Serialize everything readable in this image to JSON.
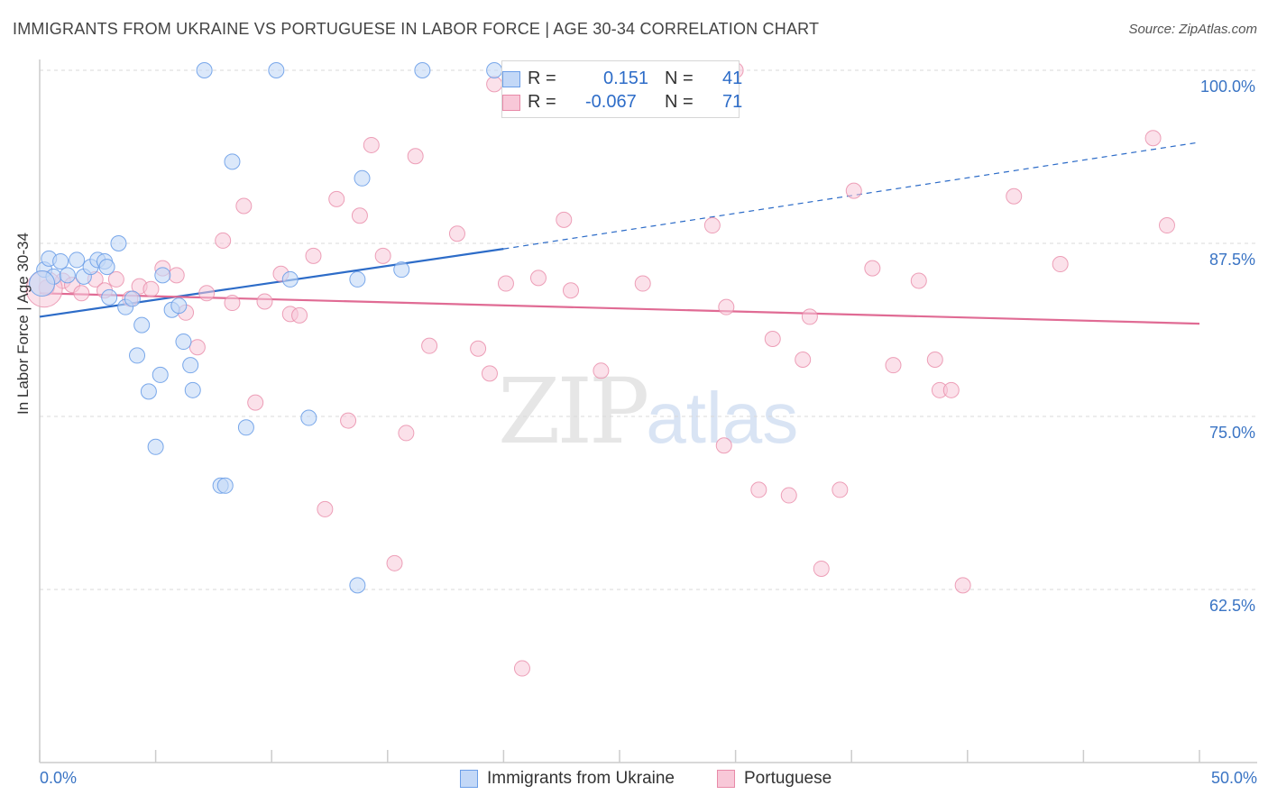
{
  "title": "IMMIGRANTS FROM UKRAINE VS PORTUGUESE IN LABOR FORCE | AGE 30-34 CORRELATION CHART",
  "source": "Source: ZipAtlas.com",
  "watermark": {
    "zip": "ZIP",
    "atlas": "atlas"
  },
  "colors": {
    "ukraine": "#6b9ee8",
    "ukraine_fill": "#c3d8f7",
    "portuguese": "#e88aa8",
    "portuguese_fill": "#f8c8d8",
    "ukraine_line": "#2d6cc8",
    "portuguese_line": "#e06b94",
    "axis_text": "#3a74c4"
  },
  "legend_top": {
    "ukraine": {
      "r_label": "R =",
      "r_value": "0.151",
      "n_label": "N =",
      "n_value": "41"
    },
    "portuguese": {
      "r_label": "R =",
      "r_value": "-0.067",
      "n_label": "N =",
      "n_value": "71"
    }
  },
  "chart_data": {
    "type": "scatter",
    "title": "IMMIGRANTS FROM UKRAINE VS PORTUGUESE IN LABOR FORCE | AGE 30-34 CORRELATION CHART",
    "xlabel": "",
    "ylabel": "In Labor Force | Age 30-34",
    "xlim": [
      0,
      50
    ],
    "ylim": [
      52,
      101
    ],
    "x_tick_labels": [
      "0.0%",
      "50.0%"
    ],
    "y_ticks": [
      62.5,
      75.0,
      87.5,
      100.0
    ],
    "y_tick_labels": [
      "62.5%",
      "75.0%",
      "87.5%",
      "100.0%"
    ],
    "grid": "horizontal dashed",
    "legend_position": "bottom-center",
    "series": [
      {
        "name": "Immigrants from Ukraine",
        "r": 0.151,
        "n": 41,
        "trend": {
          "x": [
            0,
            20
          ],
          "y": [
            82.2,
            87.1
          ],
          "extended_to": [
            50,
            94.8
          ]
        },
        "points": [
          [
            0.2,
            85.6
          ],
          [
            0.4,
            86.4
          ],
          [
            0.6,
            85.1
          ],
          [
            0.9,
            86.2
          ],
          [
            1.2,
            85.2
          ],
          [
            1.6,
            86.3
          ],
          [
            1.9,
            85.1
          ],
          [
            2.2,
            85.8
          ],
          [
            2.5,
            86.3
          ],
          [
            2.8,
            86.2
          ],
          [
            2.9,
            85.8
          ],
          [
            3.0,
            83.6
          ],
          [
            3.4,
            87.5
          ],
          [
            3.7,
            82.9
          ],
          [
            4.0,
            83.5
          ],
          [
            4.2,
            79.4
          ],
          [
            4.4,
            81.6
          ],
          [
            4.7,
            76.8
          ],
          [
            5.0,
            72.8
          ],
          [
            5.2,
            78.0
          ],
          [
            5.3,
            85.2
          ],
          [
            5.7,
            82.7
          ],
          [
            6.0,
            83.0
          ],
          [
            6.2,
            80.4
          ],
          [
            6.5,
            78.7
          ],
          [
            6.6,
            76.9
          ],
          [
            7.1,
            100.0
          ],
          [
            7.8,
            70.0
          ],
          [
            8.0,
            70.0
          ],
          [
            8.3,
            93.4
          ],
          [
            8.9,
            74.2
          ],
          [
            10.2,
            100.0
          ],
          [
            10.8,
            84.9
          ],
          [
            11.6,
            74.9
          ],
          [
            13.7,
            84.9
          ],
          [
            13.9,
            92.2
          ],
          [
            13.7,
            62.8
          ],
          [
            15.6,
            85.6
          ],
          [
            16.5,
            100.0
          ],
          [
            19.6,
            100.0
          ],
          [
            0.1,
            84.6
          ]
        ]
      },
      {
        "name": "Portuguese",
        "r": -0.067,
        "n": 71,
        "trend": {
          "x": [
            0,
            50
          ],
          "y": [
            83.9,
            81.7
          ]
        },
        "points": [
          [
            0.3,
            84.3
          ],
          [
            1.0,
            84.8
          ],
          [
            1.4,
            84.5
          ],
          [
            1.8,
            83.9
          ],
          [
            2.4,
            84.9
          ],
          [
            2.8,
            84.1
          ],
          [
            3.3,
            84.9
          ],
          [
            3.9,
            83.5
          ],
          [
            4.3,
            84.4
          ],
          [
            4.8,
            84.2
          ],
          [
            5.3,
            85.7
          ],
          [
            5.9,
            85.2
          ],
          [
            6.3,
            82.5
          ],
          [
            6.8,
            80.0
          ],
          [
            7.2,
            83.9
          ],
          [
            7.9,
            87.7
          ],
          [
            8.3,
            83.2
          ],
          [
            8.8,
            90.2
          ],
          [
            9.3,
            76.0
          ],
          [
            9.7,
            83.3
          ],
          [
            10.4,
            85.3
          ],
          [
            10.8,
            82.4
          ],
          [
            11.2,
            82.3
          ],
          [
            11.8,
            86.6
          ],
          [
            12.3,
            68.3
          ],
          [
            12.8,
            90.7
          ],
          [
            13.3,
            74.7
          ],
          [
            13.8,
            89.5
          ],
          [
            14.3,
            94.6
          ],
          [
            14.8,
            86.6
          ],
          [
            15.3,
            64.4
          ],
          [
            15.8,
            73.8
          ],
          [
            16.2,
            93.8
          ],
          [
            16.8,
            80.1
          ],
          [
            18.0,
            88.2
          ],
          [
            18.9,
            79.9
          ],
          [
            19.4,
            78.1
          ],
          [
            19.6,
            99.0
          ],
          [
            20.1,
            84.6
          ],
          [
            20.8,
            56.8
          ],
          [
            21.5,
            85.0
          ],
          [
            22.6,
            89.2
          ],
          [
            22.9,
            84.1
          ],
          [
            24.2,
            78.3
          ],
          [
            24.6,
            100.0
          ],
          [
            26.0,
            84.6
          ],
          [
            27.0,
            100.0
          ],
          [
            29.0,
            88.8
          ],
          [
            29.6,
            82.9
          ],
          [
            29.5,
            72.9
          ],
          [
            30.0,
            100.0
          ],
          [
            31.0,
            69.7
          ],
          [
            31.6,
            80.6
          ],
          [
            32.3,
            69.3
          ],
          [
            32.9,
            79.1
          ],
          [
            33.2,
            82.2
          ],
          [
            33.7,
            64.0
          ],
          [
            34.5,
            69.7
          ],
          [
            35.1,
            91.3
          ],
          [
            35.9,
            85.7
          ],
          [
            36.8,
            78.7
          ],
          [
            37.9,
            84.8
          ],
          [
            38.6,
            79.1
          ],
          [
            38.8,
            76.9
          ],
          [
            39.3,
            76.9
          ],
          [
            39.8,
            62.8
          ],
          [
            42.0,
            90.9
          ],
          [
            44.0,
            86.0
          ],
          [
            48.0,
            95.1
          ],
          [
            48.6,
            88.8
          ],
          [
            0.2,
            84.2
          ]
        ]
      }
    ]
  },
  "legend_bottom": {
    "ukraine_label": "Immigrants from Ukraine",
    "portuguese_label": "Portuguese"
  },
  "axis": {
    "x_min_label": "0.0%",
    "x_max_label": "50.0%",
    "y_label": "In Labor Force | Age 30-34"
  }
}
